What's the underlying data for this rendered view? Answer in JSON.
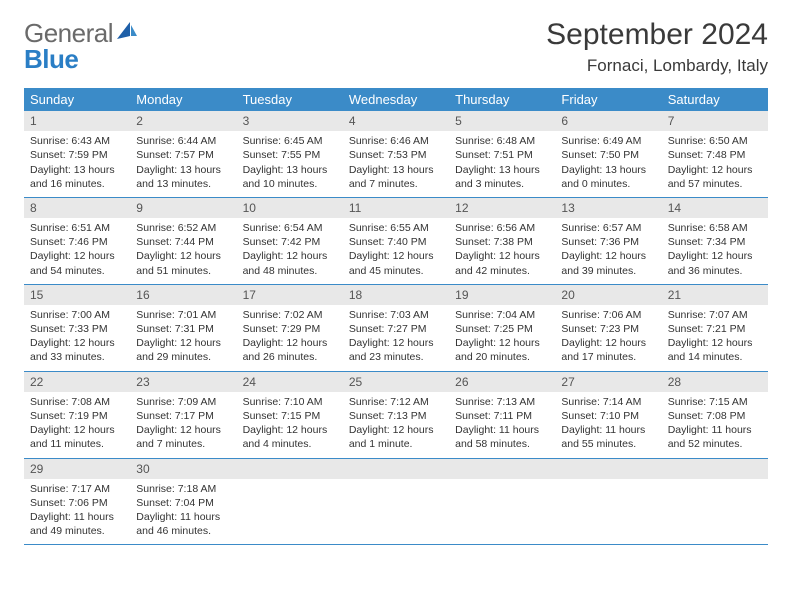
{
  "logo": {
    "text1": "General",
    "text2": "Blue"
  },
  "title": "September 2024",
  "location": "Fornaci, Lombardy, Italy",
  "colors": {
    "header_bg": "#3b8bc8",
    "header_text": "#ffffff",
    "daynum_bg": "#e8e8e8",
    "border": "#3b8bc8",
    "logo_gray": "#6a6a6a",
    "logo_blue": "#2a7ec5",
    "text": "#333333",
    "background": "#ffffff"
  },
  "weekdays": [
    "Sunday",
    "Monday",
    "Tuesday",
    "Wednesday",
    "Thursday",
    "Friday",
    "Saturday"
  ],
  "weeks": [
    [
      {
        "n": "1",
        "sr": "Sunrise: 6:43 AM",
        "ss": "Sunset: 7:59 PM",
        "d1": "Daylight: 13 hours",
        "d2": "and 16 minutes."
      },
      {
        "n": "2",
        "sr": "Sunrise: 6:44 AM",
        "ss": "Sunset: 7:57 PM",
        "d1": "Daylight: 13 hours",
        "d2": "and 13 minutes."
      },
      {
        "n": "3",
        "sr": "Sunrise: 6:45 AM",
        "ss": "Sunset: 7:55 PM",
        "d1": "Daylight: 13 hours",
        "d2": "and 10 minutes."
      },
      {
        "n": "4",
        "sr": "Sunrise: 6:46 AM",
        "ss": "Sunset: 7:53 PM",
        "d1": "Daylight: 13 hours",
        "d2": "and 7 minutes."
      },
      {
        "n": "5",
        "sr": "Sunrise: 6:48 AM",
        "ss": "Sunset: 7:51 PM",
        "d1": "Daylight: 13 hours",
        "d2": "and 3 minutes."
      },
      {
        "n": "6",
        "sr": "Sunrise: 6:49 AM",
        "ss": "Sunset: 7:50 PM",
        "d1": "Daylight: 13 hours",
        "d2": "and 0 minutes."
      },
      {
        "n": "7",
        "sr": "Sunrise: 6:50 AM",
        "ss": "Sunset: 7:48 PM",
        "d1": "Daylight: 12 hours",
        "d2": "and 57 minutes."
      }
    ],
    [
      {
        "n": "8",
        "sr": "Sunrise: 6:51 AM",
        "ss": "Sunset: 7:46 PM",
        "d1": "Daylight: 12 hours",
        "d2": "and 54 minutes."
      },
      {
        "n": "9",
        "sr": "Sunrise: 6:52 AM",
        "ss": "Sunset: 7:44 PM",
        "d1": "Daylight: 12 hours",
        "d2": "and 51 minutes."
      },
      {
        "n": "10",
        "sr": "Sunrise: 6:54 AM",
        "ss": "Sunset: 7:42 PM",
        "d1": "Daylight: 12 hours",
        "d2": "and 48 minutes."
      },
      {
        "n": "11",
        "sr": "Sunrise: 6:55 AM",
        "ss": "Sunset: 7:40 PM",
        "d1": "Daylight: 12 hours",
        "d2": "and 45 minutes."
      },
      {
        "n": "12",
        "sr": "Sunrise: 6:56 AM",
        "ss": "Sunset: 7:38 PM",
        "d1": "Daylight: 12 hours",
        "d2": "and 42 minutes."
      },
      {
        "n": "13",
        "sr": "Sunrise: 6:57 AM",
        "ss": "Sunset: 7:36 PM",
        "d1": "Daylight: 12 hours",
        "d2": "and 39 minutes."
      },
      {
        "n": "14",
        "sr": "Sunrise: 6:58 AM",
        "ss": "Sunset: 7:34 PM",
        "d1": "Daylight: 12 hours",
        "d2": "and 36 minutes."
      }
    ],
    [
      {
        "n": "15",
        "sr": "Sunrise: 7:00 AM",
        "ss": "Sunset: 7:33 PM",
        "d1": "Daylight: 12 hours",
        "d2": "and 33 minutes."
      },
      {
        "n": "16",
        "sr": "Sunrise: 7:01 AM",
        "ss": "Sunset: 7:31 PM",
        "d1": "Daylight: 12 hours",
        "d2": "and 29 minutes."
      },
      {
        "n": "17",
        "sr": "Sunrise: 7:02 AM",
        "ss": "Sunset: 7:29 PM",
        "d1": "Daylight: 12 hours",
        "d2": "and 26 minutes."
      },
      {
        "n": "18",
        "sr": "Sunrise: 7:03 AM",
        "ss": "Sunset: 7:27 PM",
        "d1": "Daylight: 12 hours",
        "d2": "and 23 minutes."
      },
      {
        "n": "19",
        "sr": "Sunrise: 7:04 AM",
        "ss": "Sunset: 7:25 PM",
        "d1": "Daylight: 12 hours",
        "d2": "and 20 minutes."
      },
      {
        "n": "20",
        "sr": "Sunrise: 7:06 AM",
        "ss": "Sunset: 7:23 PM",
        "d1": "Daylight: 12 hours",
        "d2": "and 17 minutes."
      },
      {
        "n": "21",
        "sr": "Sunrise: 7:07 AM",
        "ss": "Sunset: 7:21 PM",
        "d1": "Daylight: 12 hours",
        "d2": "and 14 minutes."
      }
    ],
    [
      {
        "n": "22",
        "sr": "Sunrise: 7:08 AM",
        "ss": "Sunset: 7:19 PM",
        "d1": "Daylight: 12 hours",
        "d2": "and 11 minutes."
      },
      {
        "n": "23",
        "sr": "Sunrise: 7:09 AM",
        "ss": "Sunset: 7:17 PM",
        "d1": "Daylight: 12 hours",
        "d2": "and 7 minutes."
      },
      {
        "n": "24",
        "sr": "Sunrise: 7:10 AM",
        "ss": "Sunset: 7:15 PM",
        "d1": "Daylight: 12 hours",
        "d2": "and 4 minutes."
      },
      {
        "n": "25",
        "sr": "Sunrise: 7:12 AM",
        "ss": "Sunset: 7:13 PM",
        "d1": "Daylight: 12 hours",
        "d2": "and 1 minute."
      },
      {
        "n": "26",
        "sr": "Sunrise: 7:13 AM",
        "ss": "Sunset: 7:11 PM",
        "d1": "Daylight: 11 hours",
        "d2": "and 58 minutes."
      },
      {
        "n": "27",
        "sr": "Sunrise: 7:14 AM",
        "ss": "Sunset: 7:10 PM",
        "d1": "Daylight: 11 hours",
        "d2": "and 55 minutes."
      },
      {
        "n": "28",
        "sr": "Sunrise: 7:15 AM",
        "ss": "Sunset: 7:08 PM",
        "d1": "Daylight: 11 hours",
        "d2": "and 52 minutes."
      }
    ],
    [
      {
        "n": "29",
        "sr": "Sunrise: 7:17 AM",
        "ss": "Sunset: 7:06 PM",
        "d1": "Daylight: 11 hours",
        "d2": "and 49 minutes."
      },
      {
        "n": "30",
        "sr": "Sunrise: 7:18 AM",
        "ss": "Sunset: 7:04 PM",
        "d1": "Daylight: 11 hours",
        "d2": "and 46 minutes."
      },
      null,
      null,
      null,
      null,
      null
    ]
  ]
}
